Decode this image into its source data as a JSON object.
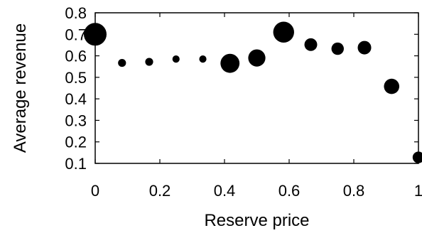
{
  "chart_data": {
    "type": "scatter",
    "title": "",
    "xlabel": "Reserve price",
    "ylabel": "Average revenue",
    "xlim": [
      0,
      1
    ],
    "ylim": [
      0.1,
      0.8
    ],
    "x_ticks": [
      "0",
      "0.2",
      "0.4",
      "0.6",
      "0.8",
      "1"
    ],
    "y_ticks": [
      "0.1",
      "0.2",
      "0.3",
      "0.4",
      "0.5",
      "0.6",
      "0.7",
      "0.8"
    ],
    "grid": false,
    "legend": "none",
    "marker_color": "#000000",
    "points": [
      {
        "x": 0.0,
        "y": 0.7,
        "size": 5
      },
      {
        "x": 0.083,
        "y": 0.567,
        "size": 1
      },
      {
        "x": 0.167,
        "y": 0.572,
        "size": 1
      },
      {
        "x": 0.25,
        "y": 0.585,
        "size": 0.8
      },
      {
        "x": 0.333,
        "y": 0.585,
        "size": 0.8
      },
      {
        "x": 0.417,
        "y": 0.565,
        "size": 4
      },
      {
        "x": 0.5,
        "y": 0.59,
        "size": 3.5
      },
      {
        "x": 0.583,
        "y": 0.71,
        "size": 4.5
      },
      {
        "x": 0.667,
        "y": 0.652,
        "size": 2.3
      },
      {
        "x": 0.75,
        "y": 0.633,
        "size": 2.2
      },
      {
        "x": 0.833,
        "y": 0.638,
        "size": 2.5
      },
      {
        "x": 0.917,
        "y": 0.458,
        "size": 3
      },
      {
        "x": 1.0,
        "y": 0.128,
        "size": 2
      }
    ]
  }
}
